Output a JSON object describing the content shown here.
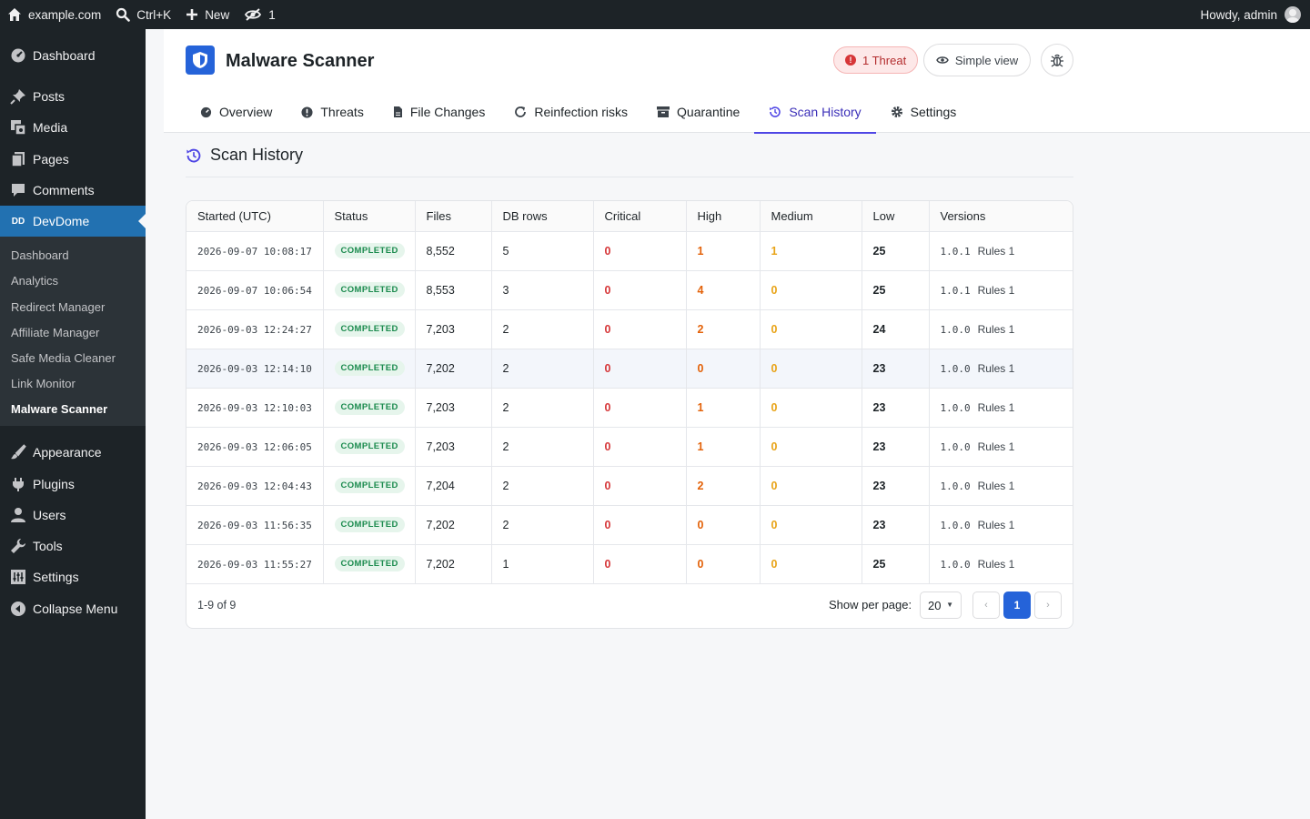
{
  "adminbar": {
    "site": "example.com",
    "search": "Ctrl+K",
    "new": "New",
    "count": "1",
    "howdy": "Howdy, admin"
  },
  "sidebar": {
    "dashboard": "Dashboard",
    "posts": "Posts",
    "media": "Media",
    "pages": "Pages",
    "comments": "Comments",
    "devdome": "DevDome",
    "devdome_icon": "DD",
    "sub": [
      "Dashboard",
      "Analytics",
      "Redirect Manager",
      "Affiliate Manager",
      "Safe Media Cleaner",
      "Link Monitor",
      "Malware Scanner"
    ],
    "appearance": "Appearance",
    "plugins": "Plugins",
    "users": "Users",
    "tools": "Tools",
    "settings": "Settings",
    "collapse": "Collapse Menu"
  },
  "header": {
    "title": "Malware Scanner",
    "threat_pill": "1 Threat",
    "simple_view": "Simple view"
  },
  "tabs": [
    "Overview",
    "Threats",
    "File Changes",
    "Reinfection risks",
    "Quarantine",
    "Scan History",
    "Settings"
  ],
  "section": {
    "title": "Scan History"
  },
  "table": {
    "columns": [
      "Started (UTC)",
      "Status",
      "Files",
      "DB rows",
      "Critical",
      "High",
      "Medium",
      "Low",
      "Versions"
    ],
    "rows": [
      {
        "started": "2026-09-07 10:08:17",
        "status": "COMPLETED",
        "files": "8,552",
        "db": "5",
        "critical": "0",
        "high": "1",
        "medium": "1",
        "low": "25",
        "version": "1.0.1",
        "rules": "Rules 1"
      },
      {
        "started": "2026-09-07 10:06:54",
        "status": "COMPLETED",
        "files": "8,553",
        "db": "3",
        "critical": "0",
        "high": "4",
        "medium": "0",
        "low": "25",
        "version": "1.0.1",
        "rules": "Rules 1"
      },
      {
        "started": "2026-09-03 12:24:27",
        "status": "COMPLETED",
        "files": "7,203",
        "db": "2",
        "critical": "0",
        "high": "2",
        "medium": "0",
        "low": "24",
        "version": "1.0.0",
        "rules": "Rules 1"
      },
      {
        "started": "2026-09-03 12:14:10",
        "status": "COMPLETED",
        "files": "7,202",
        "db": "2",
        "critical": "0",
        "high": "0",
        "medium": "0",
        "low": "23",
        "version": "1.0.0",
        "rules": "Rules 1"
      },
      {
        "started": "2026-09-03 12:10:03",
        "status": "COMPLETED",
        "files": "7,203",
        "db": "2",
        "critical": "0",
        "high": "1",
        "medium": "0",
        "low": "23",
        "version": "1.0.0",
        "rules": "Rules 1"
      },
      {
        "started": "2026-09-03 12:06:05",
        "status": "COMPLETED",
        "files": "7,203",
        "db": "2",
        "critical": "0",
        "high": "1",
        "medium": "0",
        "low": "23",
        "version": "1.0.0",
        "rules": "Rules 1"
      },
      {
        "started": "2026-09-03 12:04:43",
        "status": "COMPLETED",
        "files": "7,204",
        "db": "2",
        "critical": "0",
        "high": "2",
        "medium": "0",
        "low": "23",
        "version": "1.0.0",
        "rules": "Rules 1"
      },
      {
        "started": "2026-09-03 11:56:35",
        "status": "COMPLETED",
        "files": "7,202",
        "db": "2",
        "critical": "0",
        "high": "0",
        "medium": "0",
        "low": "23",
        "version": "1.0.0",
        "rules": "Rules 1"
      },
      {
        "started": "2026-09-03 11:55:27",
        "status": "COMPLETED",
        "files": "7,202",
        "db": "1",
        "critical": "0",
        "high": "0",
        "medium": "0",
        "low": "25",
        "version": "1.0.0",
        "rules": "Rules 1"
      }
    ]
  },
  "pagination": {
    "count": "1-9 of 9",
    "per_page_label": "Show per page:",
    "per_page_value": "20",
    "prev": "‹",
    "current": "1",
    "next": "›"
  },
  "colors": {
    "accent": "#2271b1",
    "tab_active": "#4f46e5",
    "critical": "#d63638",
    "high": "#e36209",
    "medium": "#e8a317",
    "completed": "#1a8a4d"
  }
}
